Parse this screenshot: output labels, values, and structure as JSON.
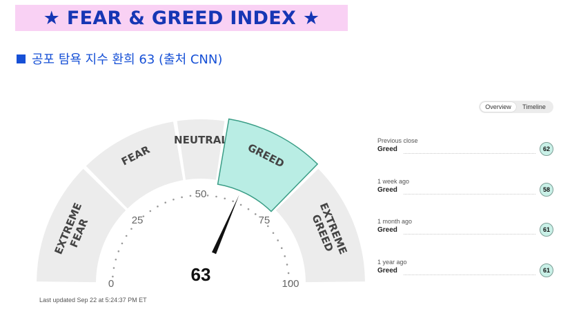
{
  "banner": {
    "title": "★ FEAR & GREED INDEX ★"
  },
  "subtitle": {
    "text": "공포 탐욕 지수 환희 63 (출처 CNN)"
  },
  "gauge": {
    "value": 63,
    "value_text": "63",
    "segments": [
      {
        "id": "extreme-fear",
        "lines": [
          "EXTREME",
          "FEAR"
        ],
        "range": [
          0,
          25
        ],
        "active": false
      },
      {
        "id": "fear",
        "lines": [
          "FEAR"
        ],
        "range": [
          25,
          45
        ],
        "active": false
      },
      {
        "id": "neutral",
        "lines": [
          "NEUTRAL"
        ],
        "range": [
          45,
          55
        ],
        "active": false
      },
      {
        "id": "greed",
        "lines": [
          "GREED"
        ],
        "range": [
          55,
          75
        ],
        "active": true
      },
      {
        "id": "extreme-greed",
        "lines": [
          "EXTREME",
          "GREED"
        ],
        "range": [
          75,
          100
        ],
        "active": false
      }
    ],
    "ticks": [
      "0",
      "25",
      "50",
      "75",
      "100"
    ],
    "colors": {
      "segment": "#ececec",
      "active": "#b9ede4",
      "active_stroke": "#3a9d86",
      "needle": "#111111",
      "label": "#444444"
    }
  },
  "last_updated": "Last updated Sep 22 at 5:24:37 PM ET",
  "toggle": {
    "overview": "Overview",
    "timeline": "Timeline",
    "active": "overview"
  },
  "history": [
    {
      "period": "Previous close",
      "label": "Greed",
      "value": "62"
    },
    {
      "period": "1 week ago",
      "label": "Greed",
      "value": "58"
    },
    {
      "period": "1 month ago",
      "label": "Greed",
      "value": "61"
    },
    {
      "period": "1 year ago",
      "label": "Greed",
      "value": "61"
    }
  ]
}
